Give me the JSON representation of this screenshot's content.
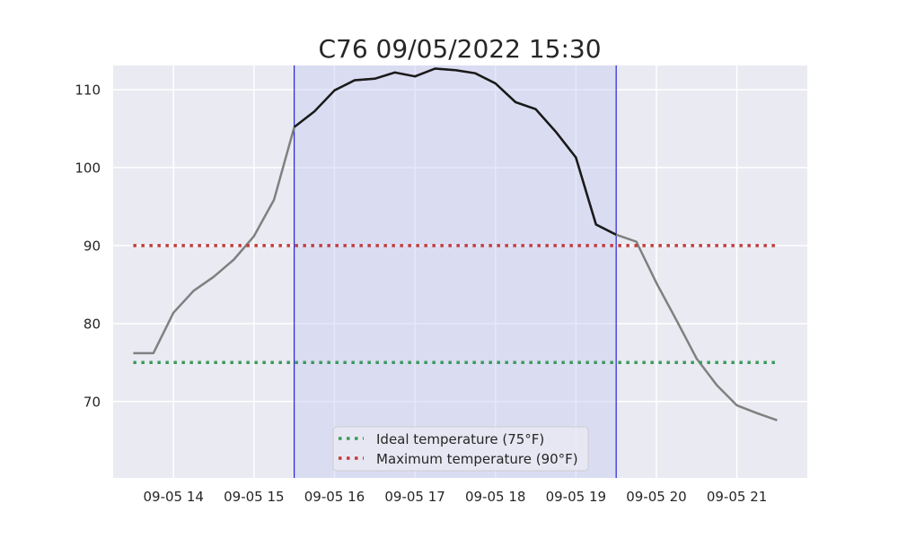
{
  "chart_data": {
    "type": "line",
    "title": "C76 09/05/2022 15:30",
    "xlabel": "",
    "ylabel": "",
    "x_unit": "hours",
    "x_ticks": [
      "09-05 14",
      "09-05 15",
      "09-05 16",
      "09-05 17",
      "09-05 18",
      "09-05 19",
      "09-05 20",
      "09-05 21"
    ],
    "x_tick_values": [
      14,
      15,
      16,
      17,
      18,
      19,
      20,
      21
    ],
    "y_ticks": [
      "70",
      "80",
      "90",
      "100",
      "110"
    ],
    "y_tick_values": [
      70,
      80,
      90,
      100,
      110
    ],
    "xlim": [
      13.25,
      21.875
    ],
    "ylim": [
      60.2,
      113.1
    ],
    "grid": true,
    "legend_position": "bottom-center",
    "highlight_span": {
      "x_start": 15.5,
      "x_end": 19.5,
      "fill": "#c8cbf2",
      "edge": "#0000cc"
    },
    "series": [
      {
        "style": "solid",
        "color": "#808080",
        "x": [
          13.5,
          13.75,
          14.0,
          14.25,
          14.5,
          14.75,
          15.0,
          15.25,
          15.5,
          15.75,
          16.0,
          16.25,
          16.5,
          16.75,
          17.0,
          17.25,
          17.5,
          17.75,
          18.0,
          18.25,
          18.5,
          18.75,
          19.0,
          19.25,
          19.5,
          19.75,
          20.0,
          20.25,
          20.5,
          20.75,
          21.0,
          21.25,
          21.5
        ],
        "y": [
          76.2,
          76.2,
          81.4,
          84.2,
          86.0,
          88.2,
          91.2,
          95.9,
          105.2,
          107.2,
          109.9,
          111.2,
          111.4,
          112.2,
          111.7,
          112.7,
          112.5,
          112.1,
          110.8,
          108.4,
          107.5,
          104.6,
          101.3,
          92.7,
          91.4,
          90.5,
          85.2,
          80.4,
          75.5,
          72.1,
          69.5,
          68.5,
          67.6
        ]
      },
      {
        "style": "solid",
        "color": "#1a1a1a",
        "x": [
          15.5,
          15.75,
          16.0,
          16.25,
          16.5,
          16.75,
          17.0,
          17.25,
          17.5,
          17.75,
          18.0,
          18.25,
          18.5,
          18.75,
          19.0,
          19.25,
          19.5
        ],
        "y": [
          105.2,
          107.2,
          109.9,
          111.2,
          111.4,
          112.2,
          111.7,
          112.7,
          112.5,
          112.1,
          110.8,
          108.4,
          107.5,
          104.6,
          101.3,
          92.7,
          91.4
        ]
      },
      {
        "name": "Ideal temperature (75°F)",
        "style": "dotted",
        "color": "#3a9a5b",
        "x": [
          13.5,
          21.5
        ],
        "y": [
          75,
          75
        ]
      },
      {
        "name": "Maximum temperature (90°F)",
        "style": "dotted",
        "color": "#c23b3b",
        "x": [
          13.5,
          21.5
        ],
        "y": [
          90,
          90
        ]
      }
    ]
  }
}
